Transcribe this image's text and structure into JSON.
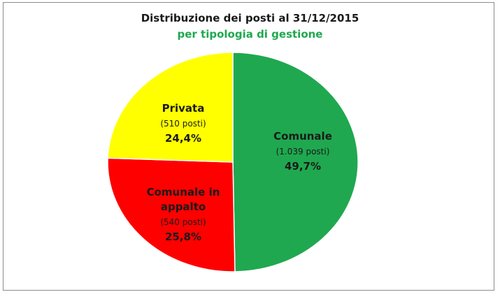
{
  "chart_data": {
    "type": "pie",
    "title": "Distribuzione dei posti al 31/12/2015",
    "subtitle": "per tipologia di gestione",
    "slices": [
      {
        "name": "Comunale",
        "count_label": "(1.039 posti)",
        "value": 1039,
        "percent_label": "49,7%",
        "color": "#1fa84f"
      },
      {
        "name": "Comunale in appalto",
        "name_lines": [
          "Comunale in",
          "appalto"
        ],
        "count_label": "(540 posti)",
        "value": 540,
        "percent_label": "25,8%",
        "color": "#ff0000"
      },
      {
        "name": "Privata",
        "count_label": "(510 posti)",
        "value": 510,
        "percent_label": "24,4%",
        "color": "#ffff00"
      }
    ]
  }
}
